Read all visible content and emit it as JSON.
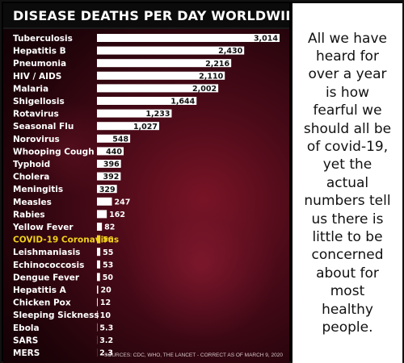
{
  "chart_data": {
    "type": "bar",
    "orientation": "horizontal",
    "title": "DISEASE DEATHS PER DAY WORLDWIDE",
    "categories": [
      "Tuberculosis",
      "Hepatitis B",
      "Pneumonia",
      "HIV / AIDS",
      "Malaria",
      "Shigellosis",
      "Rotavirus",
      "Seasonal Flu",
      "Norovirus",
      "Whooping Cough",
      "Typhoid",
      "Cholera",
      "Meningitis",
      "Measles",
      "Rabies",
      "Yellow Fever",
      "COVID-19 Coronavirus",
      "Leishmaniasis",
      "Echinococcosis",
      "Dengue Fever",
      "Hepatitis A",
      "Chicken Pox",
      "Sleeping Sickness",
      "Ebola",
      "SARS",
      "MERS"
    ],
    "values": [
      3014,
      2430,
      2216,
      2110,
      2002,
      1644,
      1233,
      1027,
      548,
      440,
      396,
      392,
      329,
      247,
      162,
      82,
      56,
      55,
      53,
      50,
      20,
      12,
      10,
      5.3,
      3.2,
      2.3
    ],
    "value_labels": [
      "3,014",
      "2,430",
      "2,216",
      "2,110",
      "2,002",
      "1,644",
      "1,233",
      "1,027",
      "548",
      "440",
      "396",
      "392",
      "329",
      "247",
      "162",
      "82",
      "56",
      "55",
      "53",
      "50",
      "20",
      "12",
      "10",
      "5.3",
      "3.2",
      "2.3"
    ],
    "highlight": "COVID-19 Coronavirus",
    "xlim": [
      0,
      3014
    ],
    "grid": false,
    "source": "SOURCES: CDC, WHO, THE LANCET - CORRECT AS OF MARCH 9, 2020"
  },
  "quote": {
    "lines": [
      "All we have",
      "heard for",
      "over a year",
      "is how",
      "fearful we",
      "should all be",
      "of covid-19,",
      "yet the",
      "actual",
      "numbers tell",
      "us there is",
      "little to be",
      "concerned",
      "about for",
      "most",
      "healthy",
      "people."
    ]
  },
  "colors": {
    "bar": "#ffffff",
    "label": "#ffffff",
    "highlight": "#f2d21b",
    "value_text": "#111111",
    "background": "#3d0914"
  }
}
